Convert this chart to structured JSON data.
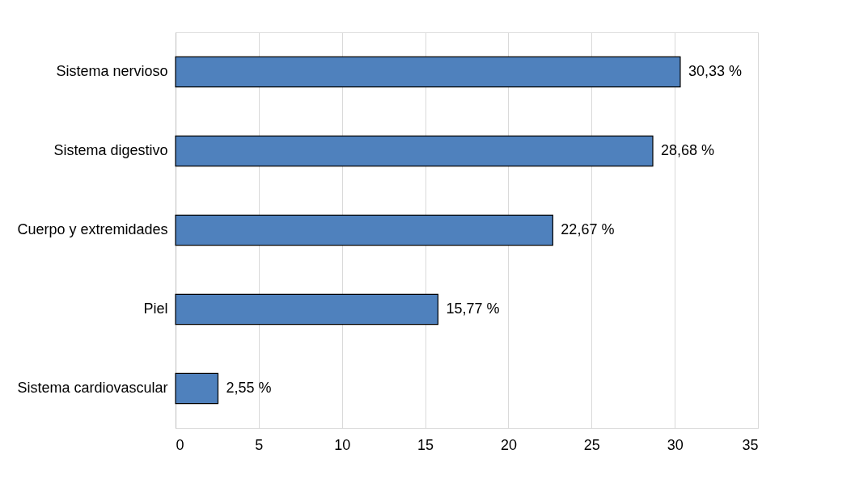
{
  "chart_data": {
    "type": "bar",
    "orientation": "horizontal",
    "categories": [
      "Sistema nervioso",
      "Sistema digestivo",
      "Cuerpo y extremidades",
      "Piel",
      "Sistema cardiovascular"
    ],
    "values": [
      30.33,
      28.68,
      22.67,
      15.77,
      2.55
    ],
    "value_labels": [
      "30,33 %",
      "28,68 %",
      "22,67 %",
      "15,77 %",
      "2,55 %"
    ],
    "color": "#4f81bd",
    "xlim": [
      0,
      35
    ],
    "xticks": [
      0,
      5,
      10,
      15,
      20,
      25,
      30,
      35
    ],
    "grid": "x"
  }
}
